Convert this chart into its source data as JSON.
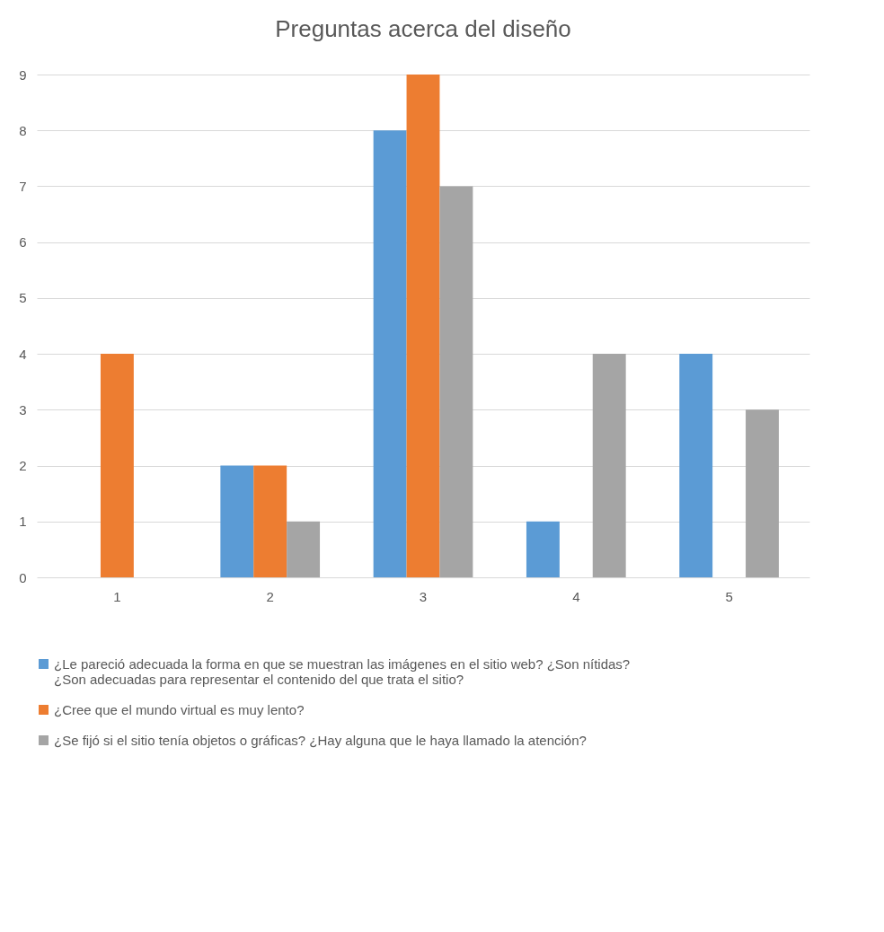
{
  "chart_data": {
    "type": "bar",
    "title": "Preguntas acerca del diseño",
    "categories": [
      "1",
      "2",
      "3",
      "4",
      "5"
    ],
    "series": [
      {
        "name": "¿Le pareció adecuada la forma en que se muestran las imágenes en el sitio web? ¿Son nítidas? ¿Son adecuadas para representar el contenido del que trata el sitio?",
        "color": "#5b9bd5",
        "values": [
          0,
          2,
          8,
          1,
          4
        ]
      },
      {
        "name": "¿Cree que el mundo virtual es muy lento?",
        "color": "#ed7d31",
        "values": [
          4,
          2,
          9,
          0,
          0
        ]
      },
      {
        "name": "¿Se fijó si el sitio tenía objetos o gráficas? ¿Hay alguna que le haya llamado la atención?",
        "color": "#a5a5a5",
        "values": [
          0,
          1,
          7,
          4,
          3
        ]
      }
    ],
    "ylim": [
      0,
      9
    ],
    "yticks": [
      0,
      1,
      2,
      3,
      4,
      5,
      6,
      7,
      8,
      9
    ],
    "grid": "y",
    "legend": "bottom"
  }
}
